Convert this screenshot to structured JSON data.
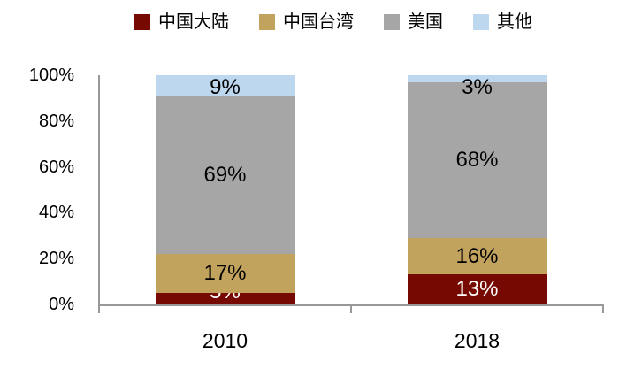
{
  "chart_data": {
    "type": "bar",
    "stacked": true,
    "orientation": "vertical",
    "value_unit": "%",
    "title": "",
    "xlabel": "",
    "ylabel": "",
    "categories": [
      "2010",
      "2018"
    ],
    "series": [
      {
        "name": "中国大陆",
        "slug": "mainland-china",
        "color": "#760A02",
        "label_color": "#FFFFFF",
        "values": [
          5,
          13
        ],
        "labels": [
          "5%",
          "13%"
        ]
      },
      {
        "name": "中国台湾",
        "slug": "taiwan-china",
        "color": "#C1A35D",
        "label_color": "#000000",
        "values": [
          17,
          16
        ],
        "labels": [
          "17%",
          "16%"
        ]
      },
      {
        "name": "美国",
        "slug": "usa",
        "color": "#A6A6A6",
        "label_color": "#000000",
        "values": [
          69,
          68
        ],
        "labels": [
          "69%",
          "68%"
        ]
      },
      {
        "name": "其他",
        "slug": "other",
        "color": "#BDD7EE",
        "label_color": "#000000",
        "values": [
          9,
          3
        ],
        "labels": [
          "9%",
          "3%"
        ]
      }
    ],
    "ylim": [
      0,
      100
    ],
    "yticks": [
      "0%",
      "20%",
      "40%",
      "60%",
      "80%",
      "100%"
    ],
    "ytick_values": [
      0,
      20,
      40,
      60,
      80,
      100
    ],
    "legend_position": "top",
    "grid": false
  },
  "colors": {
    "axis": "#999999",
    "text": "#000000",
    "background": "#FFFFFF"
  }
}
